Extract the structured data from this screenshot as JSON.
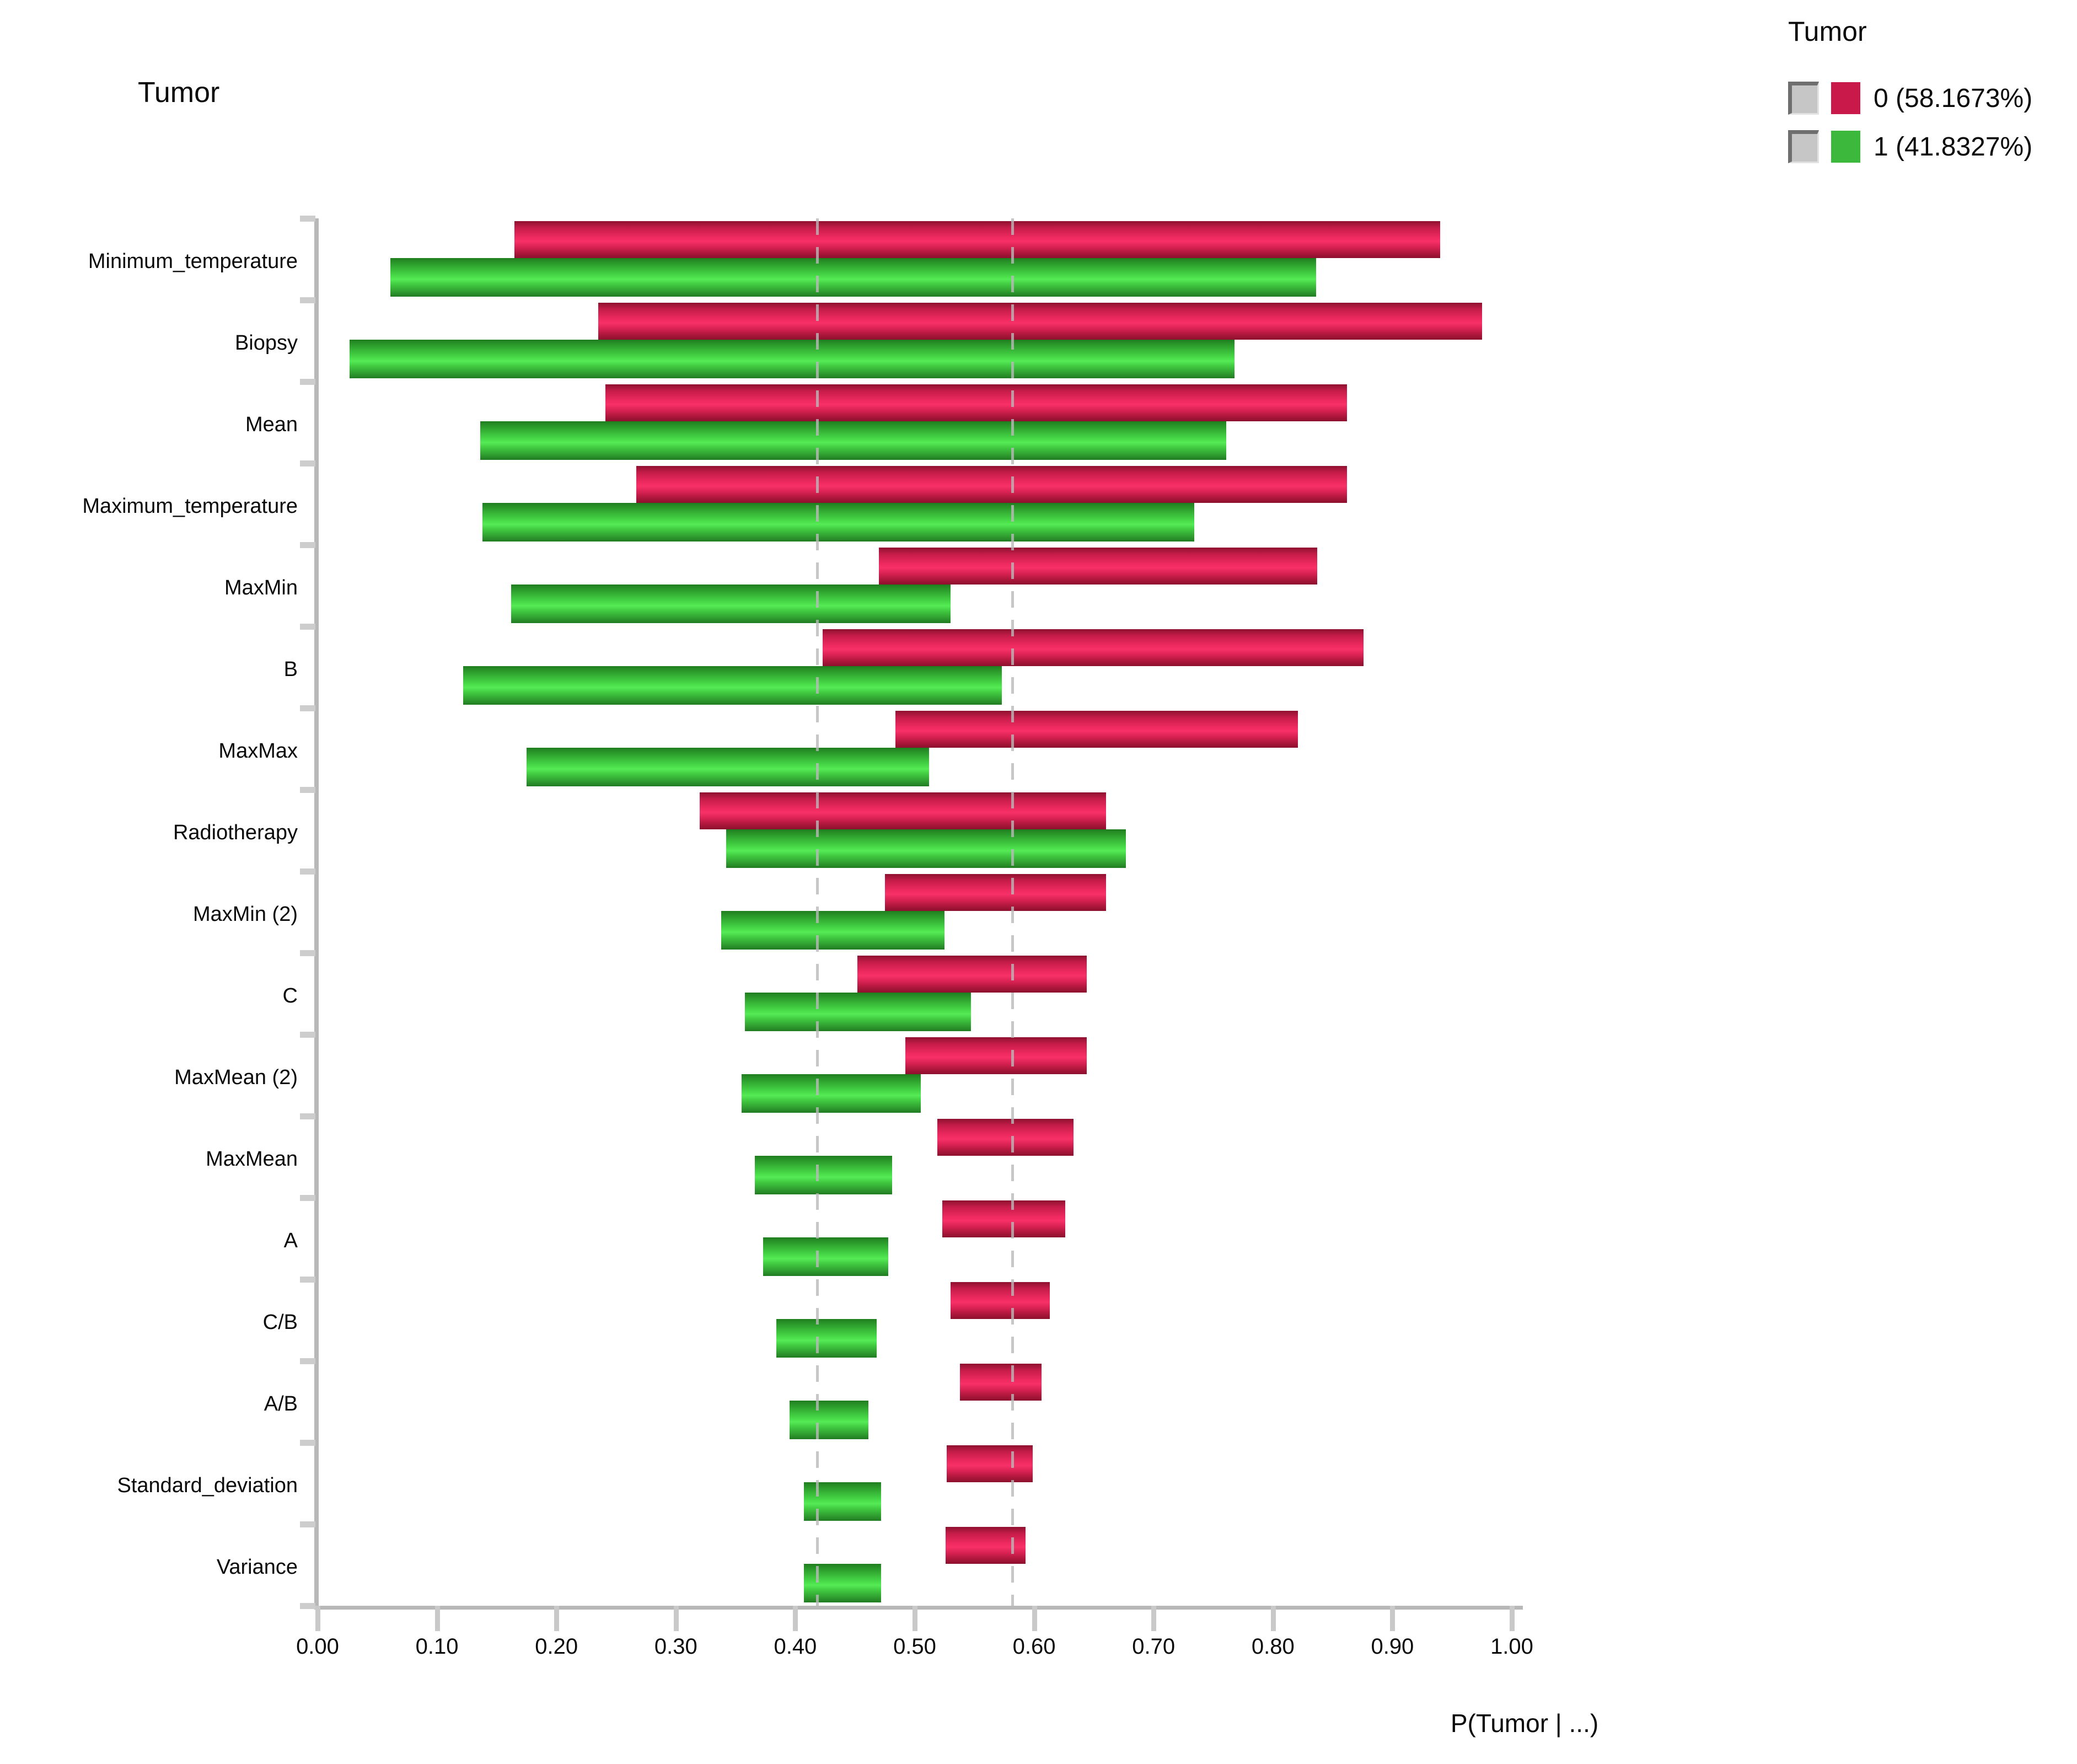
{
  "chart_title": "Tumor",
  "x_axis_title": "P(Tumor | ...)",
  "legend": {
    "title": "Tumor",
    "items": [
      {
        "state": "0",
        "label": "0 (58.1673%)",
        "color": "#c9184a"
      },
      {
        "state": "1",
        "label": "1 (41.8327%)",
        "color": "#3cb83c"
      }
    ]
  },
  "chart_data": {
    "type": "bar",
    "orientation": "horizontal-range-tornado",
    "title": "Tumor",
    "xlabel": "P(Tumor | ...)",
    "xlim": [
      0,
      1
    ],
    "x_tick_labels": [
      "0.00",
      "0.10",
      "0.20",
      "0.30",
      "0.40",
      "0.50",
      "0.60",
      "0.70",
      "0.80",
      "0.90",
      "1.00"
    ],
    "reference_lines": [
      0.4183,
      0.5817
    ],
    "grid": "off",
    "legend_position": "top-right",
    "categories": [
      "Minimum_temperature",
      "Biopsy",
      "Mean",
      "Maximum_temperature",
      "MaxMin",
      "B",
      "MaxMax",
      "Radiotherapy",
      "MaxMin (2)",
      "C",
      "MaxMean (2)",
      "MaxMean",
      "A",
      "C/B",
      "A/B",
      "Standard_deviation",
      "Variance"
    ],
    "series": [
      {
        "name": "0 (58.1673%)",
        "color": "#c9184a",
        "ranges": [
          [
            0.165,
            0.94
          ],
          [
            0.235,
            0.975
          ],
          [
            0.241,
            0.862
          ],
          [
            0.267,
            0.862
          ],
          [
            0.47,
            0.837
          ],
          [
            0.423,
            0.876
          ],
          [
            0.484,
            0.821
          ],
          [
            0.32,
            0.66
          ],
          [
            0.475,
            0.66
          ],
          [
            0.452,
            0.644
          ],
          [
            0.492,
            0.644
          ],
          [
            0.519,
            0.633
          ],
          [
            0.523,
            0.626
          ],
          [
            0.53,
            0.613
          ],
          [
            0.538,
            0.606
          ],
          [
            0.527,
            0.599
          ],
          [
            0.526,
            0.593
          ]
        ]
      },
      {
        "name": "1 (41.8327%)",
        "color": "#3cb83c",
        "ranges": [
          [
            0.061,
            0.836
          ],
          [
            0.027,
            0.768
          ],
          [
            0.136,
            0.761
          ],
          [
            0.138,
            0.734
          ],
          [
            0.162,
            0.53
          ],
          [
            0.122,
            0.573
          ],
          [
            0.175,
            0.512
          ],
          [
            0.342,
            0.677
          ],
          [
            0.338,
            0.525
          ],
          [
            0.358,
            0.547
          ],
          [
            0.355,
            0.505
          ],
          [
            0.366,
            0.481
          ],
          [
            0.373,
            0.478
          ],
          [
            0.384,
            0.468
          ],
          [
            0.395,
            0.461
          ],
          [
            0.407,
            0.472
          ],
          [
            0.407,
            0.472
          ]
        ]
      }
    ]
  }
}
